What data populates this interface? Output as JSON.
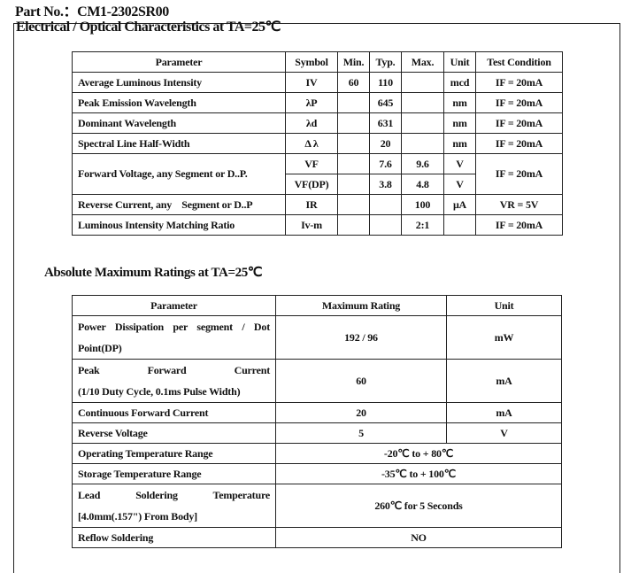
{
  "part_no": "Part No.：CM1-2302SR00",
  "electrical": {
    "title": "Electrical / Optical Characteristics at TA=25℃",
    "headers": [
      "Parameter",
      "Symbol",
      "Min.",
      "Typ.",
      "Max.",
      "Unit",
      "Test Condition"
    ],
    "rows": [
      [
        "Average Luminous Intensity",
        "IV",
        "60",
        "110",
        "",
        "mcd",
        "IF = 20mA"
      ],
      [
        "Peak Emission Wavelength",
        "λP",
        "",
        "645",
        "",
        "nm",
        "IF = 20mA"
      ],
      [
        "Dominant Wavelength",
        "λd",
        "",
        "631",
        "",
        "nm",
        "IF = 20mA"
      ],
      [
        "Spectral Line Half-Width",
        "Δ λ",
        "",
        "20",
        "",
        "nm",
        "IF = 20mA"
      ]
    ],
    "forward": {
      "parameter": "Forward Voltage, any Segment or D..P.",
      "condition": "IF = 20mA",
      "sub": [
        [
          "VF",
          "",
          "7.6",
          "9.6",
          "V"
        ],
        [
          "VF(DP)",
          "",
          "3.8",
          "4.8",
          "V"
        ]
      ]
    },
    "rows2": [
      [
        "Reverse Current, any    Segment or D..P",
        "IR",
        "",
        "",
        "100",
        "μA",
        "VR = 5V"
      ],
      [
        "Luminous Intensity Matching Ratio",
        "Iv-m",
        "",
        "",
        "2:1",
        "",
        "IF = 20mA"
      ]
    ]
  },
  "absolute": {
    "title": "Absolute Maximum Ratings at TA=25℃",
    "headers": [
      "Parameter",
      "Maximum Rating",
      "Unit"
    ],
    "rows": [
      {
        "p1": "Power Dissipation per segment / Dot",
        "p2": "Point(DP)",
        "rating": "192 / 96",
        "unit": "mW"
      },
      {
        "p1": "Peak Forward Current",
        "p2": "(1/10 Duty Cycle, 0.1ms Pulse Width)",
        "rating": "60",
        "unit": "mA"
      },
      {
        "p1": "Continuous Forward Current",
        "rating": "20",
        "unit": "mA"
      },
      {
        "p1": "Reverse Voltage",
        "rating": "5",
        "unit": "V"
      }
    ],
    "merged": [
      {
        "p1": "Operating Temperature Range",
        "rating": "-20℃  to + 80℃"
      },
      {
        "p1": "Storage Temperature Range",
        "rating": "-35℃  to + 100℃"
      },
      {
        "p1": "Lead Soldering Temperature",
        "p2": "[4.0mm(.157\") From Body]",
        "rating": "260℃  for 5 Seconds"
      },
      {
        "p1": "Reflow Soldering",
        "rating": "NO"
      }
    ]
  }
}
